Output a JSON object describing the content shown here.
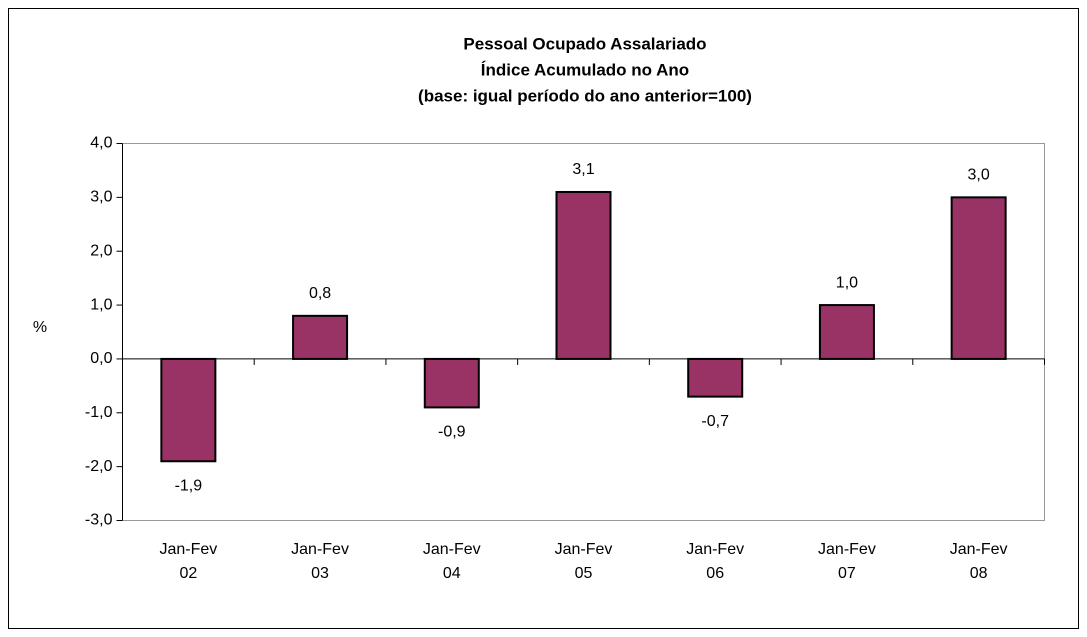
{
  "chart_data": {
    "type": "bar",
    "title": [
      "Pessoal Ocupado Assalariado",
      "Índice Acumulado no Ano",
      "(base: igual período do ano anterior=100)"
    ],
    "y_label": "%",
    "categories": [
      "Jan-Fev 02",
      "Jan-Fev 03",
      "Jan-Fev 04",
      "Jan-Fev 05",
      "Jan-Fev 06",
      "Jan-Fev 07",
      "Jan-Fev 08"
    ],
    "values": [
      -1.9,
      0.8,
      -0.9,
      3.1,
      -0.7,
      1.0,
      3.0
    ],
    "value_labels": [
      "-1,9",
      "0,8",
      "-0,9",
      "3,1",
      "-0,7",
      "1,0",
      "3,0"
    ],
    "color": "#993366",
    "ylim": [
      -3,
      4
    ],
    "yticks": [
      {
        "value": -3,
        "label": "-3,0"
      },
      {
        "value": -2,
        "label": "-2,0"
      },
      {
        "value": -1,
        "label": "-1,0"
      },
      {
        "value": 0,
        "label": "0,0"
      },
      {
        "value": 1,
        "label": "1,0"
      },
      {
        "value": 2,
        "label": "2,0"
      },
      {
        "value": 3,
        "label": "3,0"
      },
      {
        "value": 4,
        "label": "4,0"
      }
    ],
    "grid": false
  }
}
